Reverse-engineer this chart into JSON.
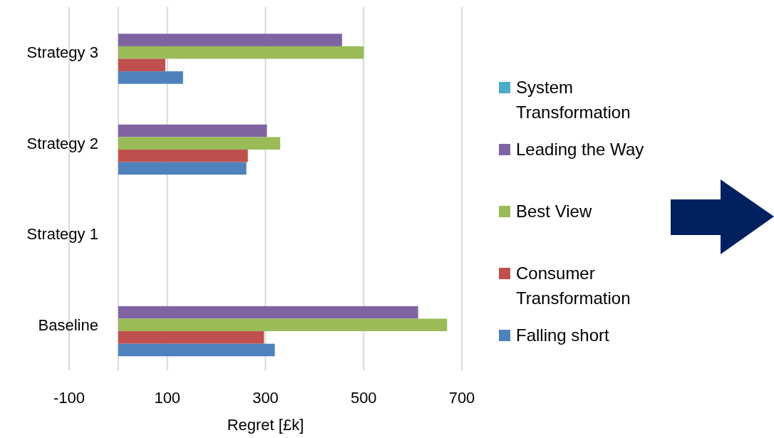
{
  "chart_data": {
    "type": "bar",
    "orientation": "horizontal",
    "xlabel": "Regret [£k]",
    "categories": [
      "Strategy 3",
      "Strategy 2",
      "Strategy 1",
      "Baseline"
    ],
    "series": [
      {
        "name": "System Transformation",
        "color": "#4bacc6",
        "values": [
          null,
          null,
          null,
          null
        ]
      },
      {
        "name": "Leading the Way",
        "color": "#8064a2",
        "values": [
          456,
          303,
          null,
          611
        ]
      },
      {
        "name": "Best View",
        "color": "#9bbb59",
        "values": [
          500,
          330,
          null,
          670
        ]
      },
      {
        "name": "Consumer Transformation",
        "color": "#c0504d",
        "values": [
          96,
          264,
          null,
          297
        ]
      },
      {
        "name": "Falling short",
        "color": "#4f81bd",
        "values": [
          132,
          261,
          null,
          319
        ]
      }
    ],
    "xlim": [
      -100,
      700
    ],
    "xticks": [
      -100,
      100,
      300,
      500,
      700
    ],
    "grid": "x",
    "legend": "right"
  }
}
